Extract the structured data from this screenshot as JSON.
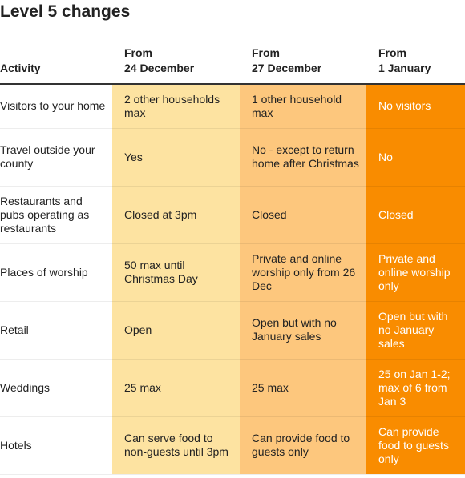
{
  "title": "Level 5 changes",
  "table": {
    "header": [
      "Activity",
      "From\n24 December",
      "From\n27 December",
      "From\n1 January"
    ],
    "rows": [
      [
        "Visitors to your home",
        "2 other households max",
        "1 other household max",
        "No visitors"
      ],
      [
        "Travel outside your county",
        "Yes",
        "No - except to return home after Christmas",
        "No"
      ],
      [
        "Restaurants and pubs operating as restaurants",
        "Closed at 3pm",
        "Closed",
        "Closed"
      ],
      [
        "Places of worship",
        "50 max until Christmas Day",
        "Private and online worship only from 26 Dec",
        "Private and online worship only"
      ],
      [
        "Retail",
        "Open",
        "Open but with no January sales",
        "Open but with no January sales"
      ],
      [
        "Weddings",
        "25 max",
        "25 max",
        "25 on Jan 1-2; max of 6 from Jan 3"
      ],
      [
        "Hotels",
        "Can serve food to non-guests until 3pm",
        "Can provide food to guests only",
        "Can provide food to guests only"
      ]
    ]
  }
}
